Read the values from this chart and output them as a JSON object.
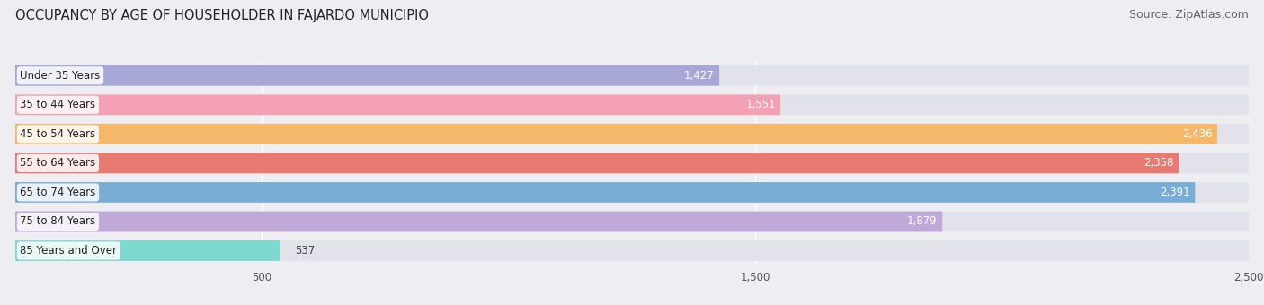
{
  "title": "OCCUPANCY BY AGE OF HOUSEHOLDER IN FAJARDO MUNICIPIO",
  "source": "Source: ZipAtlas.com",
  "categories": [
    "Under 35 Years",
    "35 to 44 Years",
    "45 to 54 Years",
    "55 to 64 Years",
    "65 to 74 Years",
    "75 to 84 Years",
    "85 Years and Over"
  ],
  "values": [
    1427,
    1551,
    2436,
    2358,
    2391,
    1879,
    537
  ],
  "bar_colors": [
    "#a8a8d8",
    "#f4a0b5",
    "#f5b86a",
    "#e87a72",
    "#7aacd8",
    "#c0a8d8",
    "#7dd8d0"
  ],
  "background_color": "#ededf2",
  "bar_background": "#e2e2ea",
  "xlim": [
    0,
    2500
  ],
  "xticks": [
    500,
    1500,
    2500
  ],
  "title_fontsize": 10.5,
  "source_fontsize": 9,
  "label_fontsize": 8.5,
  "value_fontsize": 8.5
}
